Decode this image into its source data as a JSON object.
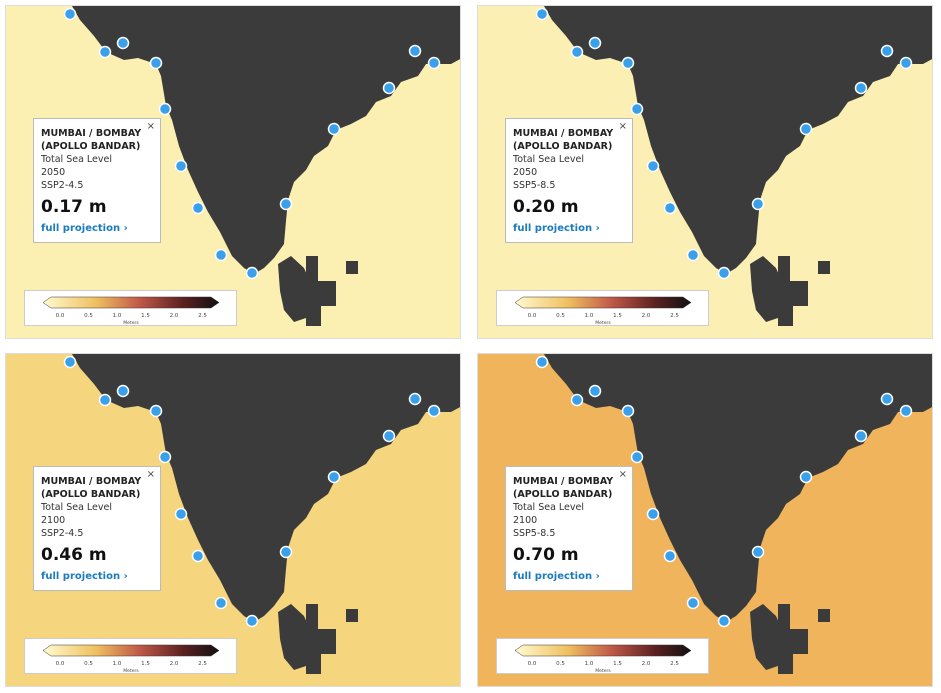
{
  "panels": [
    {
      "title_lines": [
        "MUMBAI / BOMBAY",
        "(APOLLO BANDAR)"
      ],
      "measure": "Total Sea Level",
      "year": "2050",
      "scenario": "SSP2-4.5",
      "value": "0.17 m",
      "link": "full projection ›",
      "close": "×"
    },
    {
      "title_lines": [
        "MUMBAI / BOMBAY",
        "(APOLLO BANDAR)"
      ],
      "measure": "Total Sea Level",
      "year": "2050",
      "scenario": "SSP5-8.5",
      "value": "0.20 m",
      "link": "full projection ›",
      "close": "×"
    },
    {
      "title_lines": [
        "MUMBAI / BOMBAY",
        "(APOLLO BANDAR)"
      ],
      "measure": "Total Sea Level",
      "year": "2100",
      "scenario": "SSP2-4.5",
      "value": "0.46 m",
      "link": "full projection ›",
      "close": "×"
    },
    {
      "title_lines": [
        "MUMBAI / BOMBAY",
        "(APOLLO BANDAR)"
      ],
      "measure": "Total Sea Level",
      "year": "2100",
      "scenario": "SSP5-8.5",
      "value": "0.70 m",
      "link": "full projection ›",
      "close": "×"
    }
  ],
  "legend": {
    "ticks": [
      "0.0",
      "0.5",
      "1.0",
      "1.5",
      "2.0",
      "2.5"
    ],
    "unit": "Meters"
  }
}
